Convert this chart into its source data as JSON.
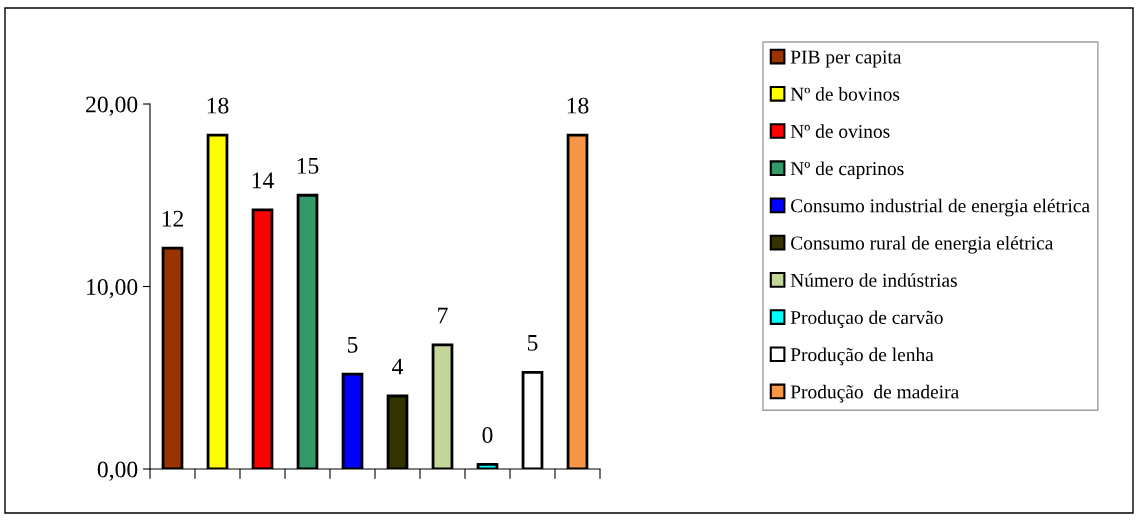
{
  "chart_data": {
    "type": "bar",
    "categories": [
      null,
      null,
      null,
      null,
      null,
      null,
      null,
      null,
      null,
      null
    ],
    "series": [
      {
        "name": "PIB per capita",
        "color": "#993300",
        "values": [
          12.1,
          null,
          null,
          null,
          null,
          null,
          null,
          null,
          null,
          null
        ],
        "value_labels": [
          "12",
          null,
          null,
          null,
          null,
          null,
          null,
          null,
          null,
          null
        ]
      },
      {
        "name": "Nº de bovinos",
        "color": "#ffff00",
        "values": [
          null,
          18.3,
          null,
          null,
          null,
          null,
          null,
          null,
          null,
          null
        ],
        "value_labels": [
          null,
          "18",
          null,
          null,
          null,
          null,
          null,
          null,
          null,
          null
        ]
      },
      {
        "name": "Nº de ovinos",
        "color": "#ff0000",
        "values": [
          null,
          null,
          14.2,
          null,
          null,
          null,
          null,
          null,
          null,
          null
        ],
        "value_labels": [
          null,
          null,
          "14",
          null,
          null,
          null,
          null,
          null,
          null,
          null
        ]
      },
      {
        "name": "Nº de caprinos",
        "color": "#339966",
        "values": [
          null,
          null,
          null,
          15.0,
          null,
          null,
          null,
          null,
          null,
          null
        ],
        "value_labels": [
          null,
          null,
          null,
          "15",
          null,
          null,
          null,
          null,
          null,
          null
        ]
      },
      {
        "name": "Consumo industrial de energia elétrica",
        "color": "#0000ff",
        "values": [
          null,
          null,
          null,
          null,
          5.2,
          null,
          null,
          null,
          null,
          null
        ],
        "value_labels": [
          null,
          null,
          null,
          null,
          "5",
          null,
          null,
          null,
          null,
          null
        ]
      },
      {
        "name": "Consumo rural de energia elétrica",
        "color": "#333300",
        "values": [
          null,
          null,
          null,
          null,
          null,
          4.0,
          null,
          null,
          null,
          null
        ],
        "value_labels": [
          null,
          null,
          null,
          null,
          null,
          "4",
          null,
          null,
          null,
          null
        ]
      },
      {
        "name": "Número de indústrias",
        "color": "#c4d79b",
        "values": [
          null,
          null,
          null,
          null,
          null,
          null,
          6.8,
          null,
          null,
          null
        ],
        "value_labels": [
          null,
          null,
          null,
          null,
          null,
          null,
          "7",
          null,
          null,
          null
        ]
      },
      {
        "name": "Produçao de carvão",
        "color": "#00ffff",
        "values": [
          null,
          null,
          null,
          null,
          null,
          null,
          null,
          0.25,
          null,
          null
        ],
        "value_labels": [
          null,
          null,
          null,
          null,
          null,
          null,
          null,
          "0",
          null,
          null
        ]
      },
      {
        "name": "Produção de lenha",
        "color": "#ffffff",
        "values": [
          null,
          null,
          null,
          null,
          null,
          null,
          null,
          null,
          5.3,
          null
        ],
        "value_labels": [
          null,
          null,
          null,
          null,
          null,
          null,
          null,
          null,
          "5",
          null
        ]
      },
      {
        "name": "Produção  de madeira",
        "color": "#f79646",
        "values": [
          null,
          null,
          null,
          null,
          null,
          null,
          null,
          null,
          null,
          18.3
        ],
        "value_labels": [
          null,
          null,
          null,
          null,
          null,
          null,
          null,
          null,
          null,
          "18"
        ]
      }
    ],
    "ylim": [
      0,
      20
    ],
    "yticks": [
      {
        "value": 0,
        "label": "0,00"
      },
      {
        "value": 10,
        "label": "10,00"
      },
      {
        "value": 20,
        "label": "20,00"
      }
    ],
    "grid": false,
    "legend": "right"
  }
}
